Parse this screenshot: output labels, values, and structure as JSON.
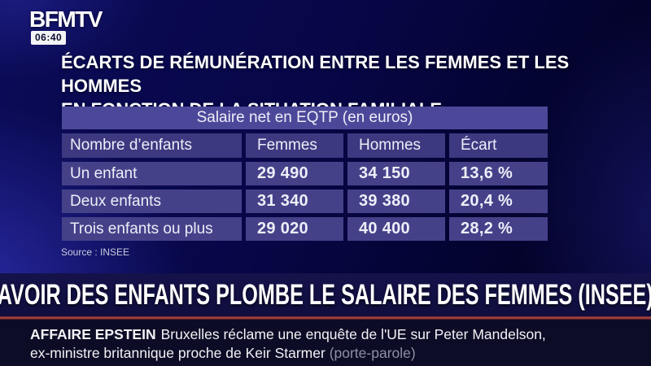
{
  "channel": {
    "logo": "BFMTV",
    "time": "06:40"
  },
  "infographic": {
    "title_line1": "ÉCARTS DE RÉMUNÉRATION ENTRE LES FEMMES ET LES HOMMES",
    "title_line2": "EN FONCTION DE LA SITUATION FAMILIALE",
    "table": {
      "header": "Salaire net en EQTP (en euros)",
      "columns": {
        "c0": "Nombre d’enfants",
        "c1": "Femmes",
        "c2": "Hommes",
        "c3": "Écart"
      },
      "rows": [
        {
          "label": "Un enfant",
          "femmes": "29 490",
          "hommes": "34 150",
          "ecart": "13,6 %"
        },
        {
          "label": "Deux enfants",
          "femmes": "31 340",
          "hommes": "39 380",
          "ecart": "20,4 %"
        },
        {
          "label": "Trois enfants ou plus",
          "femmes": "29 020",
          "hommes": "40 400",
          "ecart": "28,2 %"
        }
      ]
    },
    "source": "Source : INSEE"
  },
  "banner": {
    "headline": "AVOIR DES ENFANTS PLOMBE LE SALAIRE DES FEMMES (INSEE)"
  },
  "ticker": {
    "tag": "AFFAIRE EPSTEIN",
    "line1": "Bruxelles réclame une enquête de l'UE sur Peter Mandelson,",
    "line2": "ex-ministre britannique proche de Keir Starmer",
    "muted": "(porte-parole)"
  },
  "chart_data": {
    "type": "table",
    "title": "Salaire net en EQTP (en euros)",
    "subtitle": "Écarts de rémunération entre les femmes et les hommes en fonction de la situation familiale",
    "columns": [
      "Nombre d’enfants",
      "Femmes",
      "Hommes",
      "Écart"
    ],
    "rows": [
      [
        "Un enfant",
        29490,
        34150,
        "13,6 %"
      ],
      [
        "Deux enfants",
        31340,
        39380,
        "20,4 %"
      ],
      [
        "Trois enfants ou plus",
        29020,
        40400,
        "28,2 %"
      ]
    ],
    "source": "INSEE"
  },
  "colors": {
    "background_navy": "#070646",
    "cell_purple": "#454189",
    "header_purple": "#3c3980",
    "top_header_purple": "#4c4899",
    "red_line": "#b04c4c",
    "ticker_bg": "#0d0c26"
  }
}
